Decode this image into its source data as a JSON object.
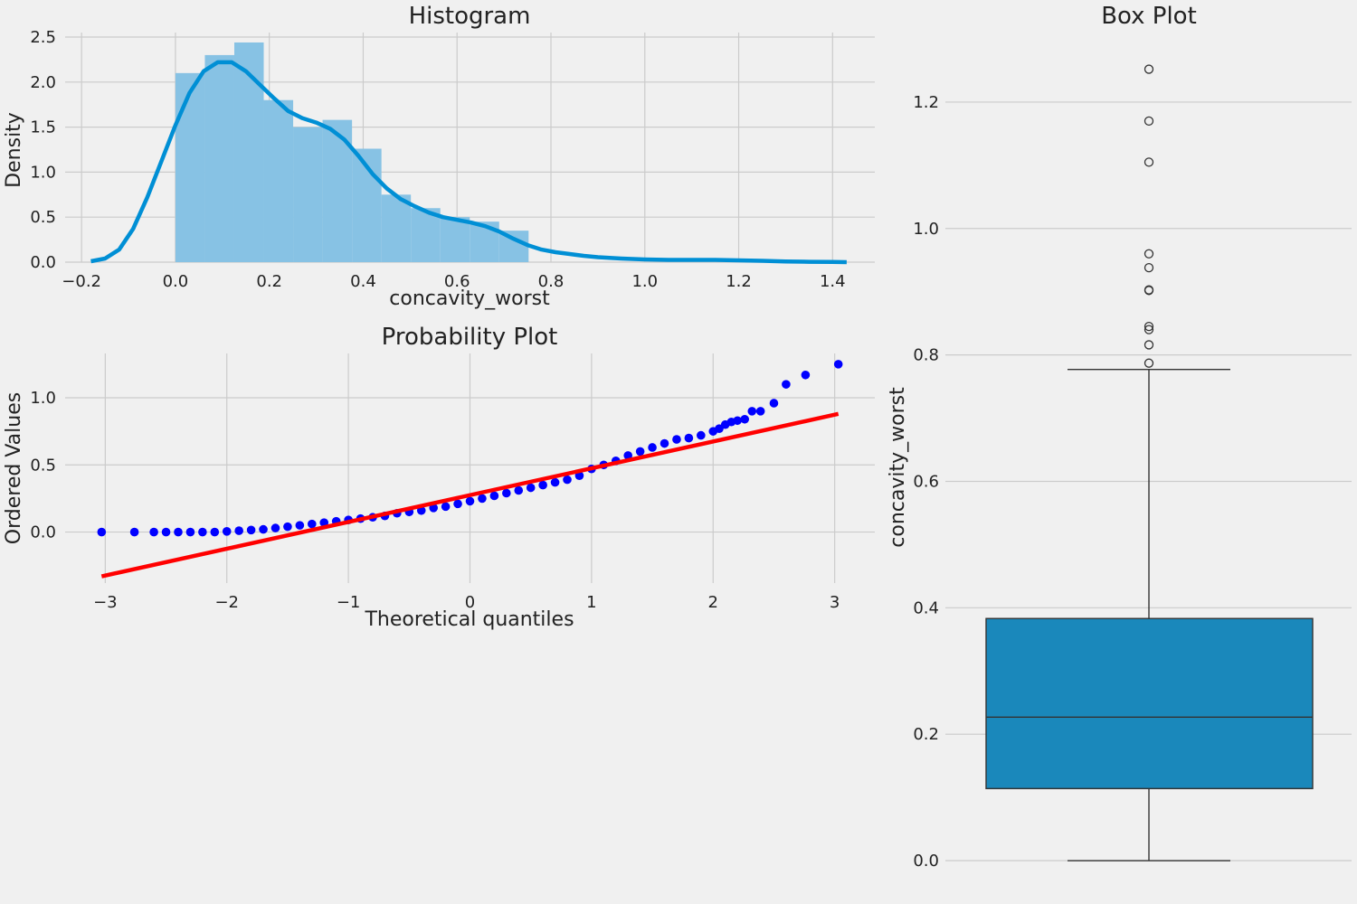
{
  "chart_data": [
    {
      "type": "histogram",
      "title": "Histogram",
      "xlabel": "concavity_worst",
      "ylabel": "Density",
      "xlim": [
        -0.235,
        1.49
      ],
      "ylim": [
        0,
        2.5
      ],
      "xticks": [
        -0.2,
        0.0,
        0.2,
        0.4,
        0.6,
        0.8,
        1.0,
        1.2,
        1.4
      ],
      "xtick_labels": [
        "−0.2",
        "0.0",
        "0.2",
        "0.4",
        "0.6",
        "0.8",
        "1.0",
        "1.2",
        "1.4"
      ],
      "yticks": [
        0.0,
        0.5,
        1.0,
        1.5,
        2.0,
        2.5
      ],
      "ytick_labels": [
        "0.0",
        "0.5",
        "1.0",
        "1.5",
        "2.0",
        "2.5"
      ],
      "bin_edges": [
        0.0,
        0.0627,
        0.1254,
        0.1881,
        0.2508,
        0.3135,
        0.3762,
        0.4389,
        0.5016,
        0.5643,
        0.627,
        0.6897,
        0.7524
      ],
      "bar_heights": [
        2.1,
        2.3,
        2.44,
        1.8,
        1.5,
        1.58,
        1.26,
        0.75,
        0.6,
        0.5,
        0.45,
        0.35
      ],
      "kde_x": [
        -0.18,
        -0.15,
        -0.12,
        -0.09,
        -0.06,
        -0.03,
        0.0,
        0.03,
        0.06,
        0.09,
        0.12,
        0.15,
        0.18,
        0.21,
        0.24,
        0.27,
        0.3,
        0.33,
        0.36,
        0.39,
        0.42,
        0.45,
        0.48,
        0.51,
        0.54,
        0.57,
        0.6,
        0.63,
        0.66,
        0.69,
        0.72,
        0.75,
        0.78,
        0.81,
        0.84,
        0.87,
        0.9,
        0.95,
        1.0,
        1.05,
        1.1,
        1.15,
        1.2,
        1.25,
        1.3,
        1.35,
        1.4,
        1.43
      ],
      "kde_y": [
        0.01,
        0.04,
        0.14,
        0.37,
        0.72,
        1.12,
        1.52,
        1.88,
        2.12,
        2.22,
        2.22,
        2.12,
        1.97,
        1.82,
        1.68,
        1.6,
        1.55,
        1.48,
        1.36,
        1.18,
        0.98,
        0.82,
        0.7,
        0.62,
        0.55,
        0.5,
        0.47,
        0.44,
        0.4,
        0.34,
        0.26,
        0.19,
        0.14,
        0.11,
        0.09,
        0.07,
        0.055,
        0.04,
        0.03,
        0.025,
        0.025,
        0.025,
        0.02,
        0.015,
        0.008,
        0.004,
        0.002,
        0.0
      ],
      "bar_color": "#87c2e4",
      "kde_color": "#008fd5"
    },
    {
      "type": "scatter",
      "title": "Probability Plot",
      "xlabel": "Theoretical quantiles",
      "ylabel": "Ordered Values",
      "xlim": [
        -3.33,
        3.33
      ],
      "ylim": [
        -0.38,
        1.33
      ],
      "xticks": [
        -3,
        -2,
        -1,
        0,
        1,
        2,
        3
      ],
      "xtick_labels": [
        "−3",
        "−2",
        "−1",
        "0",
        "1",
        "2",
        "3"
      ],
      "yticks": [
        0.0,
        0.5,
        1.0
      ],
      "ytick_labels": [
        "0.0",
        "0.5",
        "1.0"
      ],
      "points_x": [
        -3.03,
        -2.76,
        -2.6,
        -2.5,
        -2.4,
        -2.3,
        -2.2,
        -2.1,
        -2.0,
        -1.9,
        -1.8,
        -1.7,
        -1.6,
        -1.5,
        -1.4,
        -1.3,
        -1.2,
        -1.1,
        -1.0,
        -0.9,
        -0.8,
        -0.7,
        -0.6,
        -0.5,
        -0.4,
        -0.3,
        -0.2,
        -0.1,
        0.0,
        0.1,
        0.2,
        0.3,
        0.4,
        0.5,
        0.6,
        0.7,
        0.8,
        0.9,
        1.0,
        1.1,
        1.2,
        1.3,
        1.4,
        1.5,
        1.6,
        1.7,
        1.8,
        1.9,
        2.0,
        2.05,
        2.1,
        2.15,
        2.2,
        2.26,
        2.32,
        2.39,
        2.5,
        2.6,
        2.76,
        3.03
      ],
      "points_y": [
        0.0,
        0.0,
        0.0,
        0.0,
        0.0,
        0.0,
        0.0,
        0.0,
        0.005,
        0.01,
        0.015,
        0.02,
        0.03,
        0.04,
        0.05,
        0.06,
        0.07,
        0.08,
        0.09,
        0.1,
        0.11,
        0.12,
        0.14,
        0.15,
        0.16,
        0.18,
        0.19,
        0.21,
        0.23,
        0.25,
        0.27,
        0.29,
        0.31,
        0.33,
        0.35,
        0.37,
        0.39,
        0.42,
        0.47,
        0.5,
        0.53,
        0.57,
        0.6,
        0.63,
        0.66,
        0.69,
        0.7,
        0.72,
        0.75,
        0.77,
        0.8,
        0.82,
        0.83,
        0.84,
        0.9,
        0.9,
        0.96,
        1.1,
        1.17,
        1.25
      ],
      "fit_x": [
        -3.03,
        3.03
      ],
      "fit_y": [
        -0.33,
        0.88
      ],
      "point_color": "#0000ff",
      "line_color": "#ff0000"
    },
    {
      "type": "box",
      "title": "Box Plot",
      "ylabel": "concavity_worst",
      "ylim": [
        -0.03,
        1.31
      ],
      "yticks": [
        0.0,
        0.2,
        0.4,
        0.6,
        0.8,
        1.0,
        1.2
      ],
      "ytick_labels": [
        "0.0",
        "0.2",
        "0.4",
        "0.6",
        "0.8",
        "1.0",
        "1.2"
      ],
      "whisker_low": 0.0,
      "q1": 0.114,
      "median": 0.227,
      "q3": 0.383,
      "whisker_high": 0.777,
      "outliers": [
        0.787,
        0.816,
        0.84,
        0.845,
        0.902,
        0.903,
        0.938,
        0.96,
        1.105,
        1.17,
        1.252
      ],
      "box_color": "#1a88bb"
    }
  ]
}
